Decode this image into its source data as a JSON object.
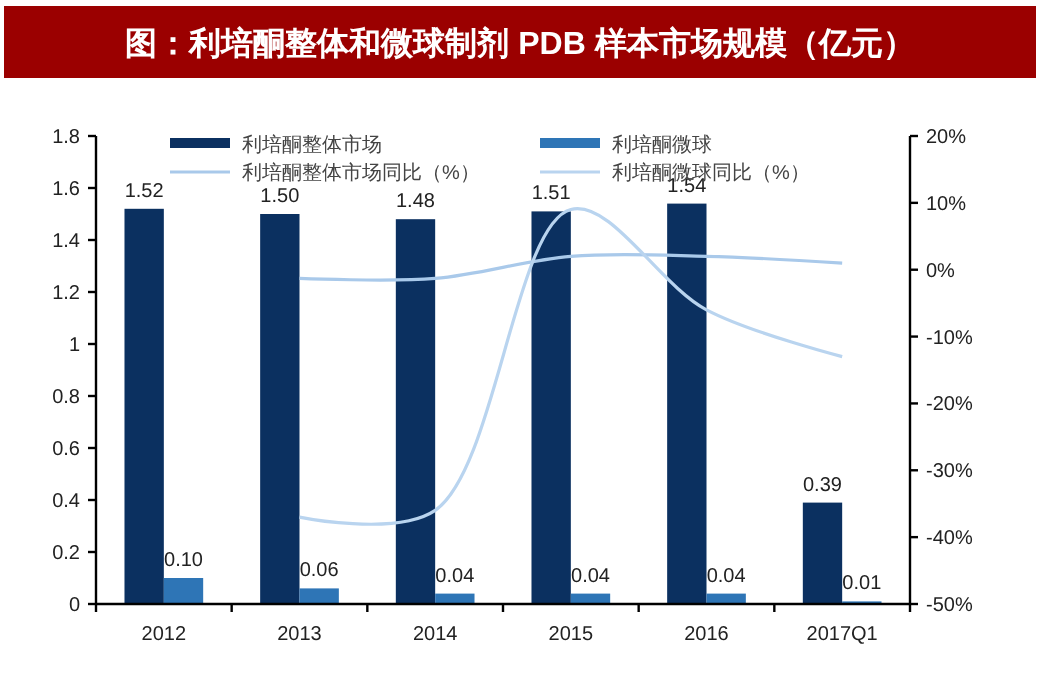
{
  "chart_data": {
    "type": "bar",
    "title": "图：利培酮整体和微球制剂 PDB 样本市场规模（亿元）",
    "categories": [
      "2012",
      "2013",
      "2014",
      "2015",
      "2016",
      "2017Q1"
    ],
    "series": [
      {
        "name": "利培酮整体市场",
        "color": "#0b3060",
        "values": [
          1.52,
          1.5,
          1.48,
          1.51,
          1.54,
          0.39
        ],
        "value_labels": [
          "1.52",
          "1.50",
          "1.48",
          "1.51",
          "1.54",
          "0.39"
        ]
      },
      {
        "name": "利培酮微球",
        "color": "#2e75b6",
        "values": [
          0.1,
          0.06,
          0.04,
          0.04,
          0.04,
          0.01
        ],
        "value_labels": [
          "0.10",
          "0.06",
          "0.04",
          "0.04",
          "0.04",
          "0.01"
        ]
      },
      {
        "name": "利培酮整体市场同比（%）",
        "type": "line",
        "axis": "y2",
        "color": "#a9c9ea",
        "values": [
          null,
          -1.3,
          -1.3,
          2,
          2,
          1
        ]
      },
      {
        "name": "利培酮微球同比（%）",
        "type": "line",
        "axis": "y2",
        "color": "#b9d4ef",
        "values": [
          null,
          -37,
          -36,
          9,
          -6,
          -13
        ]
      }
    ],
    "ylim": [
      0,
      1.8
    ],
    "yticks": [
      0,
      0.2,
      0.4,
      0.6,
      0.8,
      1,
      1.2,
      1.4,
      1.6,
      1.8
    ],
    "y2lim": [
      -50,
      20
    ],
    "y2ticks": [
      {
        "value": -50,
        "label": "-50%"
      },
      {
        "value": -40,
        "label": "-40%"
      },
      {
        "value": -30,
        "label": "-30%"
      },
      {
        "value": -20,
        "label": "-20%"
      },
      {
        "value": -10,
        "label": "-10%"
      },
      {
        "value": 0,
        "label": "0%"
      },
      {
        "value": 10,
        "label": "10%"
      },
      {
        "value": 20,
        "label": "20%"
      }
    ],
    "legend": "top",
    "grid": false,
    "marker": "none",
    "line_style": "solid"
  }
}
